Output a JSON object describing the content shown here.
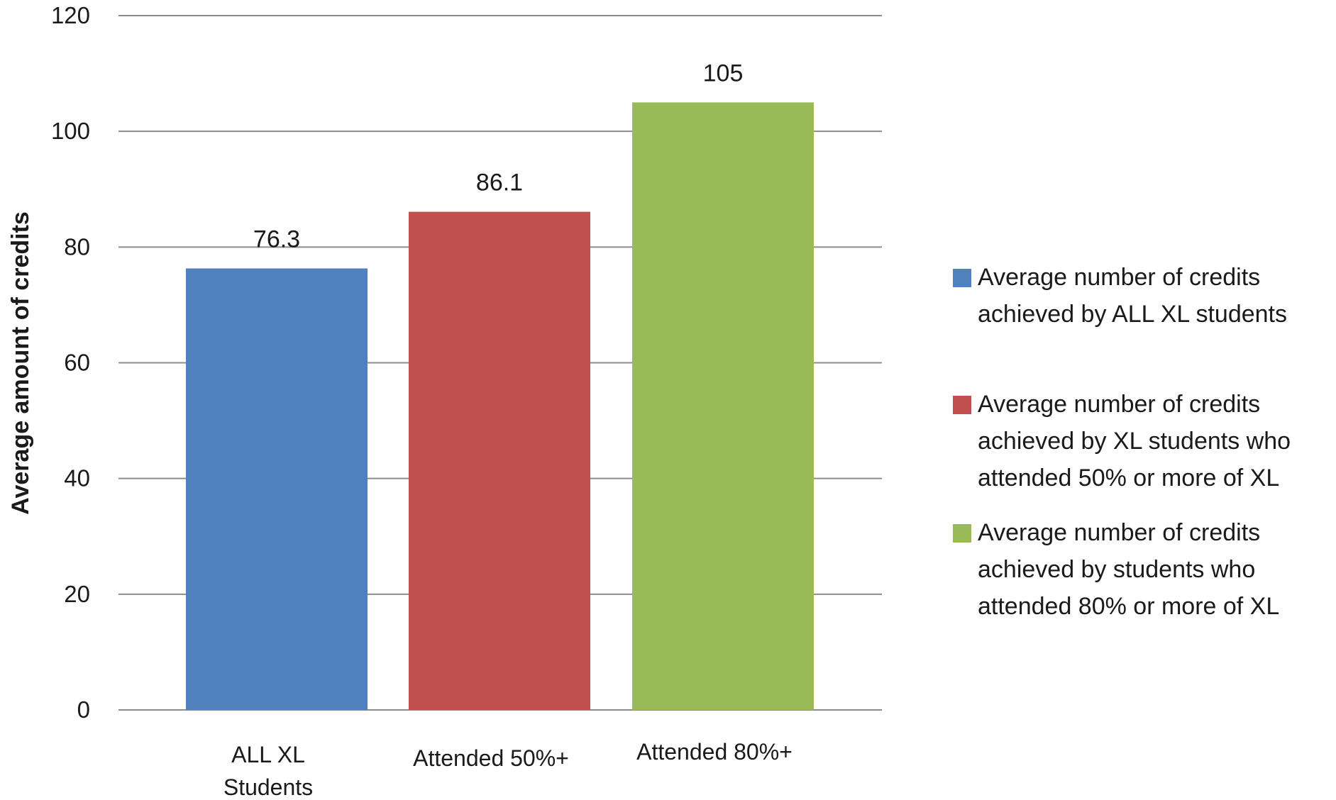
{
  "chart_data": {
    "type": "bar",
    "categories": [
      [
        "ALL XL",
        "Students"
      ],
      [
        "Attended 50%+"
      ],
      [
        "Attended 80%+"
      ]
    ],
    "values": [
      76.3,
      86.1,
      105
    ],
    "value_labels": [
      "76.3",
      "86.1",
      "105"
    ],
    "colors": [
      "#4F81BD",
      "#C0504D",
      "#9BBB59"
    ],
    "ylabel": "Average amount of credits",
    "xlabel": "",
    "ylim": [
      0,
      120
    ],
    "yticks": [
      0,
      20,
      40,
      60,
      80,
      100,
      120
    ],
    "grid": true,
    "gridline_color": "#8c8c8c",
    "legend_position": "right",
    "legend": [
      {
        "lines": [
          "Average number of credits",
          "achieved by ALL XL students"
        ],
        "color": "#4F81BD"
      },
      {
        "lines": [
          "Average number of credits",
          "achieved by XL students who",
          "attended 50% or more of XL"
        ],
        "color": "#C0504D"
      },
      {
        "lines": [
          "Average number of credits",
          "achieved by students who",
          "attended 80% or more of XL"
        ],
        "color": "#9BBB59"
      }
    ]
  }
}
